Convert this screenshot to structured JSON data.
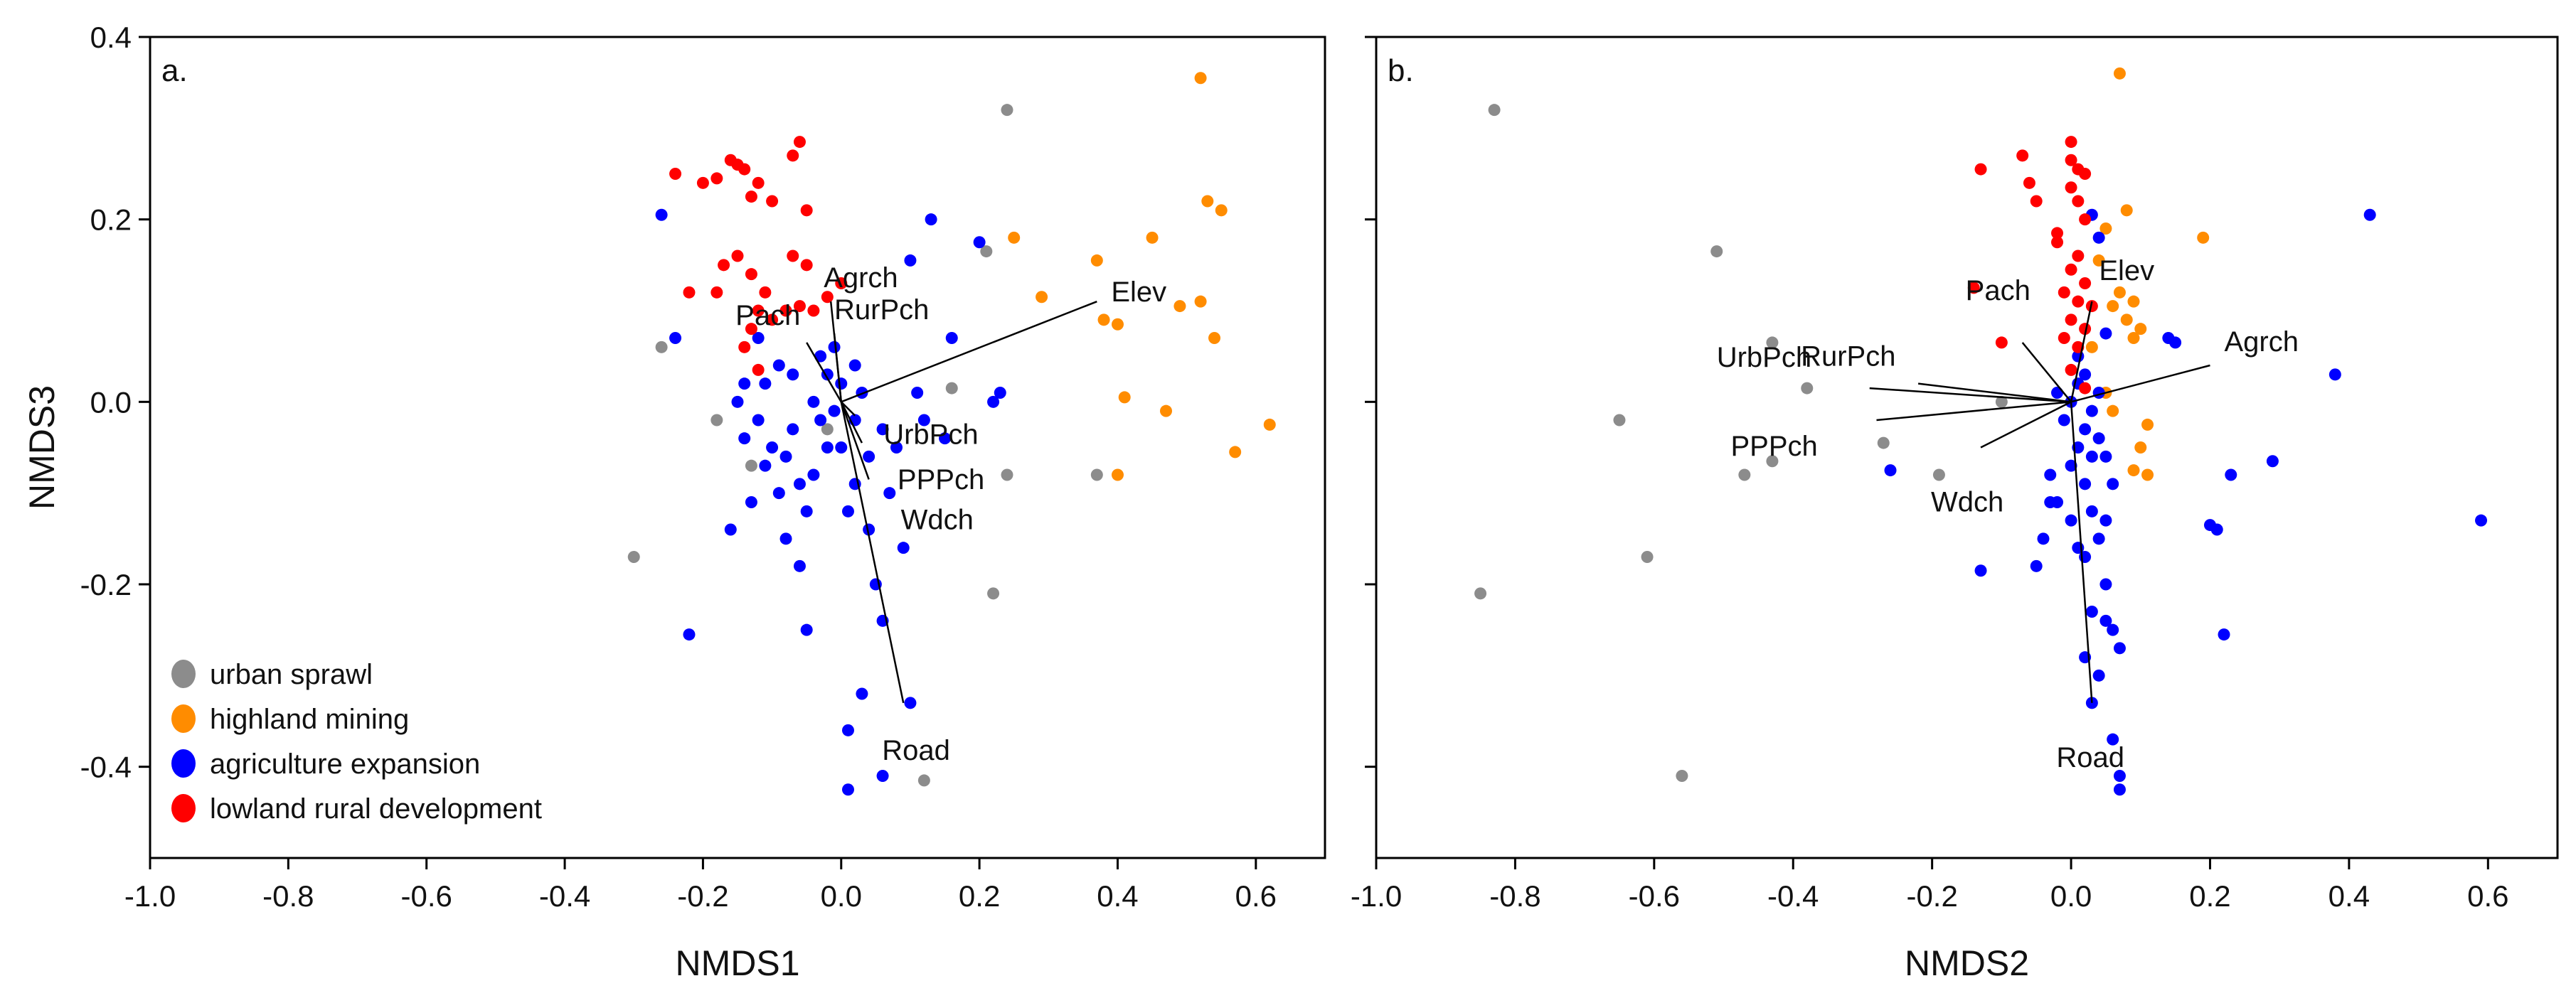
{
  "figure": {
    "shared_ylabel": "NMDS3"
  },
  "legend": [
    {
      "label": "urban sprawl",
      "color": "#8c8c8c"
    },
    {
      "label": "highland mining",
      "color": "#ff8c00"
    },
    {
      "label": "agriculture expansion",
      "color": "#0000ff"
    },
    {
      "label": "lowland rural development",
      "color": "#ff0000"
    }
  ],
  "chart_data": [
    {
      "type": "scatter",
      "panel": "a.",
      "xlabel": "NMDS1",
      "ylabel": "NMDS3",
      "xlim": [
        -1.0,
        0.7
      ],
      "ylim": [
        -0.5,
        0.4
      ],
      "xticks": [
        "-1.0",
        "-0.8",
        "-0.6",
        "-0.4",
        "-0.2",
        "0.0",
        "0.2",
        "0.4",
        "0.6"
      ],
      "yticks": [
        "0.4",
        "0.2",
        "0.0",
        "-0.2",
        "-0.4"
      ],
      "series": [
        {
          "name": "urban sprawl",
          "color": "#8c8c8c",
          "points": [
            [
              -0.3,
              -0.17
            ],
            [
              -0.26,
              0.06
            ],
            [
              -0.18,
              -0.02
            ],
            [
              -0.13,
              -0.07
            ],
            [
              0.16,
              0.015
            ],
            [
              0.21,
              0.165
            ],
            [
              0.24,
              0.32
            ],
            [
              0.22,
              -0.21
            ],
            [
              0.12,
              -0.415
            ],
            [
              0.24,
              -0.08
            ],
            [
              0.37,
              -0.08
            ],
            [
              -0.02,
              -0.03
            ]
          ]
        },
        {
          "name": "highland mining",
          "color": "#ff8c00",
          "points": [
            [
              0.52,
              0.355
            ],
            [
              0.53,
              0.22
            ],
            [
              0.55,
              0.21
            ],
            [
              0.54,
              0.07
            ],
            [
              0.52,
              0.11
            ],
            [
              0.49,
              0.105
            ],
            [
              0.45,
              0.18
            ],
            [
              0.37,
              0.155
            ],
            [
              0.38,
              0.09
            ],
            [
              0.4,
              0.085
            ],
            [
              0.29,
              0.115
            ],
            [
              0.25,
              0.18
            ],
            [
              0.41,
              0.005
            ],
            [
              0.47,
              -0.01
            ],
            [
              0.57,
              -0.055
            ],
            [
              0.62,
              -0.025
            ],
            [
              0.4,
              -0.08
            ]
          ]
        },
        {
          "name": "agriculture expansion",
          "color": "#0000ff",
          "points": [
            [
              -0.26,
              0.205
            ],
            [
              -0.24,
              0.07
            ],
            [
              -0.22,
              -0.255
            ],
            [
              -0.15,
              0.0
            ],
            [
              -0.14,
              -0.04
            ],
            [
              -0.12,
              -0.02
            ],
            [
              -0.11,
              0.02
            ],
            [
              -0.1,
              -0.05
            ],
            [
              -0.09,
              -0.1
            ],
            [
              -0.08,
              -0.15
            ],
            [
              -0.07,
              -0.03
            ],
            [
              -0.06,
              -0.18
            ],
            [
              -0.05,
              -0.25
            ],
            [
              -0.04,
              -0.08
            ],
            [
              -0.03,
              -0.02
            ],
            [
              -0.02,
              0.03
            ],
            [
              -0.01,
              0.06
            ],
            [
              0.0,
              -0.05
            ],
            [
              0.01,
              -0.12
            ],
            [
              0.02,
              -0.02
            ],
            [
              0.03,
              0.01
            ],
            [
              0.04,
              -0.06
            ],
            [
              0.05,
              -0.2
            ],
            [
              0.06,
              -0.24
            ],
            [
              0.07,
              -0.1
            ],
            [
              0.08,
              -0.05
            ],
            [
              0.09,
              -0.16
            ],
            [
              0.1,
              -0.33
            ],
            [
              0.1,
              0.155
            ],
            [
              0.11,
              0.01
            ],
            [
              0.12,
              -0.02
            ],
            [
              0.13,
              0.2
            ],
            [
              0.15,
              -0.04
            ],
            [
              0.16,
              0.07
            ],
            [
              0.2,
              0.175
            ],
            [
              0.22,
              0.0
            ],
            [
              0.23,
              0.01
            ],
            [
              0.03,
              -0.32
            ],
            [
              0.01,
              -0.36
            ],
            [
              0.01,
              -0.425
            ],
            [
              0.06,
              -0.41
            ],
            [
              -0.16,
              -0.14
            ],
            [
              -0.13,
              -0.11
            ],
            [
              -0.11,
              -0.07
            ],
            [
              -0.08,
              -0.06
            ],
            [
              -0.06,
              -0.09
            ],
            [
              -0.05,
              -0.12
            ],
            [
              -0.04,
              0.0
            ],
            [
              -0.02,
              -0.05
            ],
            [
              0.0,
              0.02
            ],
            [
              0.02,
              -0.09
            ],
            [
              0.04,
              -0.14
            ],
            [
              0.06,
              -0.03
            ],
            [
              -0.12,
              0.07
            ],
            [
              -0.14,
              0.02
            ],
            [
              -0.09,
              0.04
            ],
            [
              -0.07,
              0.03
            ],
            [
              -0.03,
              0.05
            ],
            [
              -0.01,
              -0.01
            ],
            [
              0.02,
              0.04
            ]
          ]
        },
        {
          "name": "lowland rural development",
          "color": "#ff0000",
          "points": [
            [
              -0.24,
              0.25
            ],
            [
              -0.2,
              0.24
            ],
            [
              -0.18,
              0.245
            ],
            [
              -0.16,
              0.265
            ],
            [
              -0.15,
              0.26
            ],
            [
              -0.14,
              0.255
            ],
            [
              -0.13,
              0.225
            ],
            [
              -0.12,
              0.24
            ],
            [
              -0.1,
              0.22
            ],
            [
              -0.07,
              0.27
            ],
            [
              -0.06,
              0.285
            ],
            [
              -0.05,
              0.21
            ],
            [
              -0.15,
              0.16
            ],
            [
              -0.13,
              0.14
            ],
            [
              -0.11,
              0.12
            ],
            [
              -0.07,
              0.16
            ],
            [
              -0.05,
              0.15
            ],
            [
              -0.1,
              0.09
            ],
            [
              -0.12,
              0.1
            ],
            [
              -0.13,
              0.08
            ],
            [
              -0.14,
              0.06
            ],
            [
              -0.06,
              0.105
            ],
            [
              -0.04,
              0.1
            ],
            [
              -0.02,
              0.115
            ],
            [
              0.0,
              0.13
            ],
            [
              -0.22,
              0.12
            ],
            [
              -0.18,
              0.12
            ],
            [
              -0.08,
              0.1
            ],
            [
              -0.12,
              0.035
            ],
            [
              -0.17,
              0.15
            ]
          ]
        }
      ],
      "vectors": [
        {
          "label": "Elev",
          "x": 0.37,
          "y": 0.11
        },
        {
          "label": "Agrch",
          "x": -0.015,
          "y": 0.11
        },
        {
          "label": "RurPch",
          "x": -0.01,
          "y": 0.075
        },
        {
          "label": "Pach",
          "x": -0.05,
          "y": 0.065
        },
        {
          "label": "UrbPch",
          "x": 0.02,
          "y": -0.015
        },
        {
          "label": "PPPch",
          "x": 0.03,
          "y": -0.045
        },
        {
          "label": "Wdch",
          "x": 0.04,
          "y": -0.085
        },
        {
          "label": "Road",
          "x": 0.09,
          "y": -0.33
        }
      ]
    },
    {
      "type": "scatter",
      "panel": "b.",
      "xlabel": "NMDS2",
      "ylabel": "NMDS3",
      "xlim": [
        -1.0,
        0.7
      ],
      "ylim": [
        -0.5,
        0.4
      ],
      "xticks": [
        "-1.0",
        "-0.8",
        "-0.6",
        "-0.4",
        "-0.2",
        "0.0",
        "0.2",
        "0.4",
        "0.6"
      ],
      "yticks": [
        "0.4",
        "0.2",
        "0.0",
        "-0.2",
        "-0.4"
      ],
      "series": [
        {
          "name": "urban sprawl",
          "color": "#8c8c8c",
          "points": [
            [
              -0.83,
              0.32
            ],
            [
              -0.85,
              -0.21
            ],
            [
              -0.65,
              -0.02
            ],
            [
              -0.61,
              -0.17
            ],
            [
              -0.56,
              -0.41
            ],
            [
              -0.51,
              0.165
            ],
            [
              -0.43,
              0.065
            ],
            [
              -0.38,
              0.015
            ],
            [
              -0.43,
              -0.065
            ],
            [
              -0.47,
              -0.08
            ],
            [
              -0.27,
              -0.045
            ],
            [
              -0.19,
              -0.08
            ],
            [
              -0.1,
              0.0
            ]
          ]
        },
        {
          "name": "highland mining",
          "color": "#ff8c00",
          "points": [
            [
              0.07,
              0.36
            ],
            [
              0.08,
              0.21
            ],
            [
              0.05,
              0.19
            ],
            [
              0.04,
              0.155
            ],
            [
              0.07,
              0.12
            ],
            [
              0.06,
              0.105
            ],
            [
              0.09,
              0.11
            ],
            [
              0.08,
              0.09
            ],
            [
              0.1,
              0.08
            ],
            [
              0.09,
              0.07
            ],
            [
              0.19,
              0.18
            ],
            [
              0.11,
              -0.025
            ],
            [
              0.1,
              -0.05
            ],
            [
              0.09,
              -0.075
            ],
            [
              0.11,
              -0.08
            ],
            [
              0.06,
              -0.01
            ],
            [
              0.05,
              0.01
            ],
            [
              0.03,
              0.06
            ]
          ]
        },
        {
          "name": "agriculture expansion",
          "color": "#0000ff",
          "points": [
            [
              0.43,
              0.205
            ],
            [
              0.38,
              0.03
            ],
            [
              0.59,
              -0.13
            ],
            [
              0.29,
              -0.065
            ],
            [
              0.23,
              -0.08
            ],
            [
              0.22,
              -0.255
            ],
            [
              0.21,
              -0.14
            ],
            [
              0.2,
              -0.135
            ],
            [
              0.14,
              0.07
            ],
            [
              0.15,
              0.065
            ],
            [
              0.05,
              0.075
            ],
            [
              0.04,
              0.18
            ],
            [
              0.03,
              0.205
            ],
            [
              -0.26,
              -0.075
            ],
            [
              -0.13,
              -0.185
            ],
            [
              -0.05,
              -0.18
            ],
            [
              -0.04,
              -0.15
            ],
            [
              -0.03,
              -0.11
            ],
            [
              0.0,
              -0.07
            ],
            [
              0.01,
              -0.05
            ],
            [
              0.02,
              -0.03
            ],
            [
              0.03,
              -0.01
            ],
            [
              0.04,
              0.01
            ],
            [
              0.02,
              0.03
            ],
            [
              0.01,
              0.05
            ],
            [
              0.02,
              -0.09
            ],
            [
              0.03,
              -0.12
            ],
            [
              0.04,
              -0.15
            ],
            [
              0.05,
              -0.2
            ],
            [
              0.05,
              -0.24
            ],
            [
              0.06,
              -0.25
            ],
            [
              0.07,
              -0.27
            ],
            [
              0.06,
              -0.37
            ],
            [
              0.07,
              -0.41
            ],
            [
              0.07,
              -0.425
            ],
            [
              0.03,
              -0.33
            ],
            [
              -0.03,
              -0.08
            ],
            [
              -0.02,
              -0.11
            ],
            [
              0.0,
              -0.13
            ],
            [
              0.01,
              -0.16
            ],
            [
              -0.01,
              -0.02
            ],
            [
              0.04,
              -0.04
            ],
            [
              0.05,
              -0.06
            ],
            [
              0.06,
              -0.09
            ],
            [
              0.05,
              -0.13
            ],
            [
              -0.02,
              0.01
            ],
            [
              0.0,
              0.0
            ],
            [
              0.01,
              0.02
            ],
            [
              0.03,
              -0.06
            ],
            [
              0.02,
              -0.17
            ],
            [
              0.03,
              -0.23
            ],
            [
              0.02,
              -0.28
            ],
            [
              0.04,
              -0.3
            ]
          ]
        },
        {
          "name": "lowland rural development",
          "color": "#ff0000",
          "points": [
            [
              0.0,
              0.285
            ],
            [
              0.0,
              0.265
            ],
            [
              0.01,
              0.255
            ],
            [
              0.02,
              0.25
            ],
            [
              0.0,
              0.235
            ],
            [
              0.01,
              0.22
            ],
            [
              -0.07,
              0.27
            ],
            [
              -0.13,
              0.255
            ],
            [
              -0.06,
              0.24
            ],
            [
              -0.05,
              0.22
            ],
            [
              0.02,
              0.2
            ],
            [
              -0.02,
              0.175
            ],
            [
              0.01,
              0.16
            ],
            [
              0.0,
              0.145
            ],
            [
              0.02,
              0.13
            ],
            [
              -0.01,
              0.12
            ],
            [
              0.01,
              0.11
            ],
            [
              0.03,
              0.105
            ],
            [
              0.0,
              0.09
            ],
            [
              0.02,
              0.08
            ],
            [
              -0.01,
              0.07
            ],
            [
              0.01,
              0.06
            ],
            [
              -0.1,
              0.065
            ],
            [
              -0.14,
              0.125
            ],
            [
              0.0,
              0.035
            ],
            [
              0.02,
              0.015
            ],
            [
              -0.02,
              0.185
            ]
          ]
        }
      ],
      "vectors": [
        {
          "label": "Elev",
          "x": 0.03,
          "y": 0.11
        },
        {
          "label": "Agrch",
          "x": 0.2,
          "y": 0.04
        },
        {
          "label": "Pach",
          "x": -0.07,
          "y": 0.065
        },
        {
          "label": "RurPch",
          "x": -0.22,
          "y": 0.02
        },
        {
          "label": "UrbPch",
          "x": -0.29,
          "y": 0.015
        },
        {
          "label": "PPPch",
          "x": -0.28,
          "y": -0.02
        },
        {
          "label": "Wdch",
          "x": -0.13,
          "y": -0.05
        },
        {
          "label": "Road",
          "x": 0.03,
          "y": -0.33
        }
      ]
    }
  ]
}
